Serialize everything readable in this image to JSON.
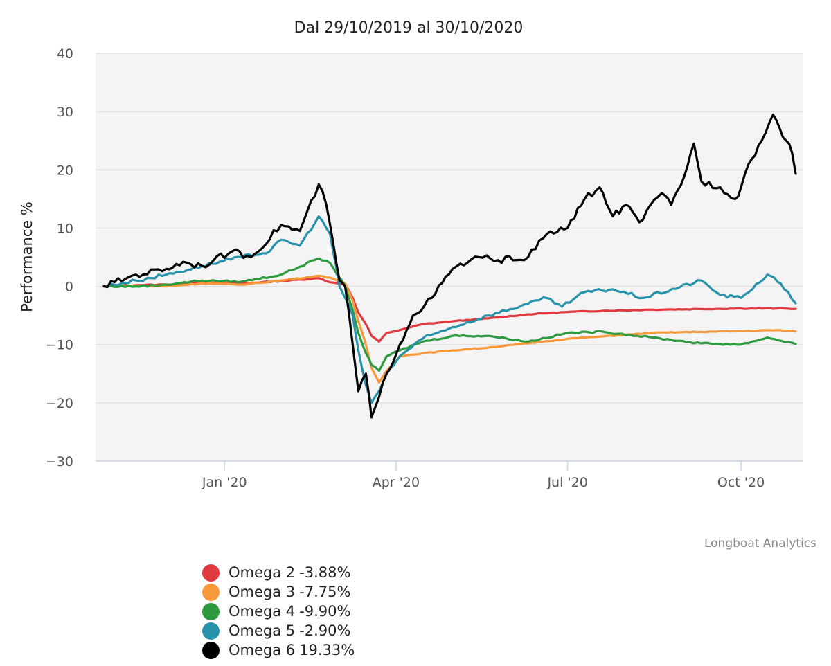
{
  "chart_data": {
    "type": "line",
    "title": "Dal 29/10/2019 al 30/10/2020",
    "xlabel": "",
    "ylabel": "Performance %",
    "ylim": [
      -30,
      40
    ],
    "yticks": [
      40,
      30,
      20,
      10,
      0,
      -10,
      -20,
      -30
    ],
    "xlim": [
      "2019-10-29",
      "2020-10-30"
    ],
    "xticks": [
      {
        "date": "2020-01-01",
        "label": "Jan '20"
      },
      {
        "date": "2020-04-01",
        "label": "Apr '20"
      },
      {
        "date": "2020-07-01",
        "label": "Jul '20"
      },
      {
        "date": "2020-10-01",
        "label": "Oct '20"
      }
    ],
    "grid": true,
    "credits": "Longboat Analytics",
    "series": [
      {
        "name": "Omega 2",
        "final_label": "-3.88%",
        "color": "#e0393e",
        "points": [
          [
            "2019-10-29",
            0
          ],
          [
            "2019-11-15",
            0.2
          ],
          [
            "2019-12-01",
            0.3
          ],
          [
            "2019-12-20",
            0.6
          ],
          [
            "2020-01-10",
            0.5
          ],
          [
            "2020-01-31",
            0.9
          ],
          [
            "2020-02-20",
            1.4
          ],
          [
            "2020-02-26",
            0.7
          ],
          [
            "2020-03-05",
            0.4
          ],
          [
            "2020-03-09",
            -2.0
          ],
          [
            "2020-03-12",
            -4.5
          ],
          [
            "2020-03-16",
            -6.5
          ],
          [
            "2020-03-19",
            -8.5
          ],
          [
            "2020-03-23",
            -9.5
          ],
          [
            "2020-03-27",
            -8.0
          ],
          [
            "2020-04-03",
            -7.5
          ],
          [
            "2020-04-15",
            -6.5
          ],
          [
            "2020-05-01",
            -6.0
          ],
          [
            "2020-05-20",
            -5.5
          ],
          [
            "2020-06-10",
            -4.8
          ],
          [
            "2020-07-01",
            -4.4
          ],
          [
            "2020-07-20",
            -4.2
          ],
          [
            "2020-08-15",
            -4.0
          ],
          [
            "2020-09-10",
            -3.9
          ],
          [
            "2020-10-01",
            -3.8
          ],
          [
            "2020-10-20",
            -3.8
          ],
          [
            "2020-10-30",
            -3.88
          ]
        ]
      },
      {
        "name": "Omega 3",
        "final_label": "-7.75%",
        "color": "#f7983a",
        "points": [
          [
            "2019-10-29",
            0
          ],
          [
            "2019-11-15",
            0.1
          ],
          [
            "2019-12-01",
            0
          ],
          [
            "2019-12-20",
            0.5
          ],
          [
            "2020-01-10",
            0.3
          ],
          [
            "2020-01-31",
            1.0
          ],
          [
            "2020-02-20",
            1.8
          ],
          [
            "2020-02-26",
            1.5
          ],
          [
            "2020-03-05",
            0.5
          ],
          [
            "2020-03-09",
            -2.5
          ],
          [
            "2020-03-12",
            -6.0
          ],
          [
            "2020-03-16",
            -10.0
          ],
          [
            "2020-03-19",
            -14.0
          ],
          [
            "2020-03-23",
            -16.5
          ],
          [
            "2020-03-27",
            -14.5
          ],
          [
            "2020-04-03",
            -12.0
          ],
          [
            "2020-04-15",
            -11.5
          ],
          [
            "2020-05-01",
            -11.0
          ],
          [
            "2020-05-20",
            -10.5
          ],
          [
            "2020-06-10",
            -9.8
          ],
          [
            "2020-07-01",
            -9.0
          ],
          [
            "2020-07-20",
            -8.6
          ],
          [
            "2020-08-15",
            -8.0
          ],
          [
            "2020-09-10",
            -7.8
          ],
          [
            "2020-10-01",
            -7.7
          ],
          [
            "2020-10-20",
            -7.5
          ],
          [
            "2020-10-30",
            -7.75
          ]
        ]
      },
      {
        "name": "Omega 4",
        "final_label": "-9.90%",
        "color": "#2e9a40",
        "points": [
          [
            "2019-10-29",
            0
          ],
          [
            "2019-11-15",
            0
          ],
          [
            "2019-12-01",
            0.3
          ],
          [
            "2019-12-20",
            1.0
          ],
          [
            "2020-01-10",
            0.8
          ],
          [
            "2020-01-31",
            2.0
          ],
          [
            "2020-02-20",
            4.8
          ],
          [
            "2020-02-26",
            4.0
          ],
          [
            "2020-03-05",
            0
          ],
          [
            "2020-03-09",
            -4.0
          ],
          [
            "2020-03-12",
            -8.0
          ],
          [
            "2020-03-16",
            -11.5
          ],
          [
            "2020-03-19",
            -13.5
          ],
          [
            "2020-03-23",
            -14.5
          ],
          [
            "2020-03-27",
            -12.0
          ],
          [
            "2020-04-03",
            -11.0
          ],
          [
            "2020-04-15",
            -9.5
          ],
          [
            "2020-05-01",
            -8.5
          ],
          [
            "2020-05-20",
            -8.5
          ],
          [
            "2020-06-10",
            -9.5
          ],
          [
            "2020-07-01",
            -8.0
          ],
          [
            "2020-07-20",
            -7.8
          ],
          [
            "2020-08-15",
            -8.8
          ],
          [
            "2020-09-10",
            -9.8
          ],
          [
            "2020-10-01",
            -10.0
          ],
          [
            "2020-10-15",
            -8.8
          ],
          [
            "2020-10-30",
            -9.9
          ]
        ]
      },
      {
        "name": "Omega 5",
        "final_label": "-2.90%",
        "color": "#2792aa",
        "points": [
          [
            "2019-10-29",
            0
          ],
          [
            "2019-11-15",
            1.0
          ],
          [
            "2019-12-01",
            2.0
          ],
          [
            "2019-12-20",
            3.5
          ],
          [
            "2020-01-10",
            5.0
          ],
          [
            "2020-01-25",
            6.0
          ],
          [
            "2020-01-31",
            8.0
          ],
          [
            "2020-02-10",
            7.0
          ],
          [
            "2020-02-20",
            12.0
          ],
          [
            "2020-02-26",
            9.0
          ],
          [
            "2020-03-02",
            0
          ],
          [
            "2020-03-05",
            -2.0
          ],
          [
            "2020-03-09",
            -5.0
          ],
          [
            "2020-03-12",
            -11.0
          ],
          [
            "2020-03-16",
            -17.0
          ],
          [
            "2020-03-19",
            -20.0
          ],
          [
            "2020-03-23",
            -18.0
          ],
          [
            "2020-03-27",
            -15.0
          ],
          [
            "2020-04-03",
            -12.0
          ],
          [
            "2020-04-15",
            -9.0
          ],
          [
            "2020-05-01",
            -7.0
          ],
          [
            "2020-05-20",
            -5.0
          ],
          [
            "2020-06-10",
            -3.0
          ],
          [
            "2020-06-20",
            -2.0
          ],
          [
            "2020-06-28",
            -3.5
          ],
          [
            "2020-07-10",
            -1.0
          ],
          [
            "2020-07-25",
            -0.5
          ],
          [
            "2020-08-10",
            -2.0
          ],
          [
            "2020-09-10",
            1.0
          ],
          [
            "2020-09-20",
            -1.5
          ],
          [
            "2020-10-01",
            -2.0
          ],
          [
            "2020-10-15",
            2.0
          ],
          [
            "2020-10-22",
            0.5
          ],
          [
            "2020-10-30",
            -2.9
          ]
        ]
      },
      {
        "name": "Omega 6",
        "final_label": "19.33%",
        "color": "#000000",
        "points": [
          [
            "2019-10-29",
            0
          ],
          [
            "2019-11-15",
            2.0
          ],
          [
            "2019-12-01",
            3.0
          ],
          [
            "2019-12-10",
            4.2
          ],
          [
            "2019-12-20",
            3.5
          ],
          [
            "2020-01-05",
            6.0
          ],
          [
            "2020-01-15",
            5.0
          ],
          [
            "2020-01-31",
            10.5
          ],
          [
            "2020-02-10",
            9.5
          ],
          [
            "2020-02-20",
            17.5
          ],
          [
            "2020-02-24",
            14.0
          ],
          [
            "2020-03-02",
            1.0
          ],
          [
            "2020-03-05",
            0
          ],
          [
            "2020-03-09",
            -10.0
          ],
          [
            "2020-03-12",
            -18.0
          ],
          [
            "2020-03-16",
            -15.0
          ],
          [
            "2020-03-19",
            -22.5
          ],
          [
            "2020-03-23",
            -19.0
          ],
          [
            "2020-03-27",
            -15.0
          ],
          [
            "2020-04-03",
            -10.0
          ],
          [
            "2020-04-10",
            -5.0
          ],
          [
            "2020-04-20",
            -2.0
          ],
          [
            "2020-05-01",
            3.0
          ],
          [
            "2020-05-15",
            5.0
          ],
          [
            "2020-05-25",
            4.5
          ],
          [
            "2020-06-10",
            5.0
          ],
          [
            "2020-06-20",
            9.0
          ],
          [
            "2020-07-01",
            10.0
          ],
          [
            "2020-07-10",
            15.0
          ],
          [
            "2020-07-18",
            17.0
          ],
          [
            "2020-07-25",
            12.0
          ],
          [
            "2020-08-01",
            14.0
          ],
          [
            "2020-08-08",
            11.0
          ],
          [
            "2020-08-20",
            16.0
          ],
          [
            "2020-08-25",
            14.0
          ],
          [
            "2020-09-01",
            19.0
          ],
          [
            "2020-09-06",
            24.5
          ],
          [
            "2020-09-10",
            18.0
          ],
          [
            "2020-09-20",
            17.0
          ],
          [
            "2020-09-28",
            15.0
          ],
          [
            "2020-10-01",
            17.0
          ],
          [
            "2020-10-05",
            21.0
          ],
          [
            "2020-10-12",
            25.0
          ],
          [
            "2020-10-18",
            29.5
          ],
          [
            "2020-10-25",
            25.0
          ],
          [
            "2020-10-28",
            23.0
          ],
          [
            "2020-10-30",
            19.33
          ]
        ]
      }
    ]
  }
}
